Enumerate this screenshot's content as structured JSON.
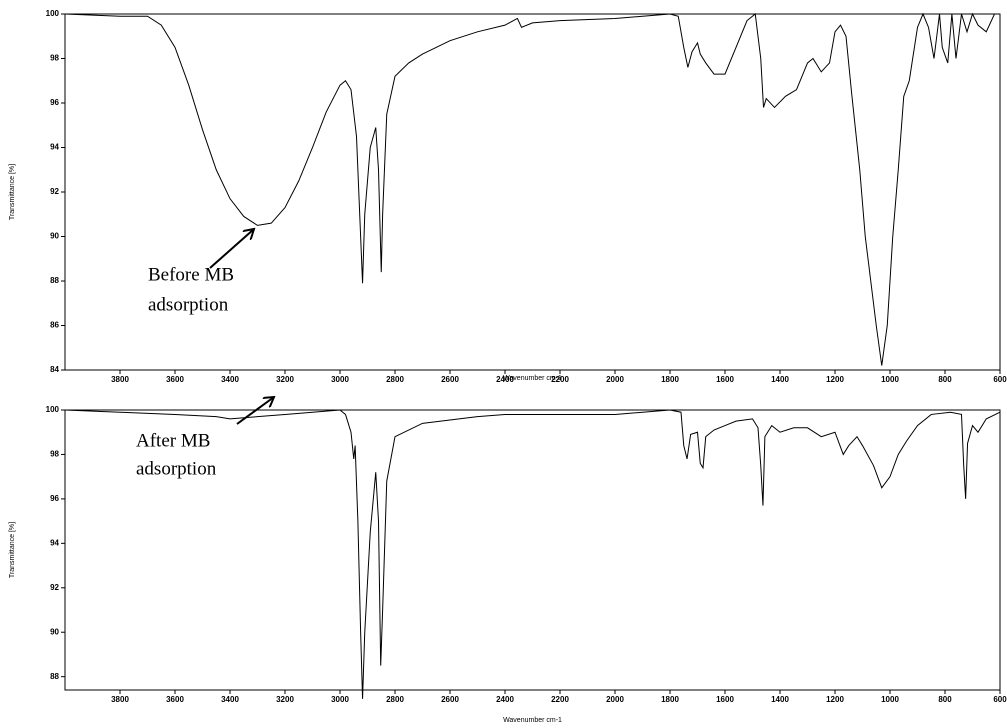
{
  "chart_data": [
    {
      "type": "line",
      "x_label": "Wavenumber cm-1",
      "y_label": "Transmittance [%]",
      "annotation": [
        "Before  MB",
        "adsorption"
      ],
      "xlim": [
        4000,
        600
      ],
      "ylim": [
        84,
        100
      ],
      "xticks": [
        3800,
        3600,
        3400,
        3200,
        3000,
        2800,
        2600,
        2400,
        2200,
        2000,
        1800,
        1600,
        1400,
        1200,
        1000,
        800,
        600
      ],
      "yticks": [
        84,
        86,
        88,
        90,
        92,
        94,
        96,
        98,
        100
      ],
      "color": "#000000",
      "x": [
        4000,
        3800,
        3700,
        3650,
        3600,
        3550,
        3500,
        3450,
        3400,
        3350,
        3300,
        3250,
        3200,
        3150,
        3100,
        3050,
        3000,
        2980,
        2960,
        2940,
        2925,
        2918,
        2910,
        2890,
        2870,
        2860,
        2850,
        2845,
        2830,
        2800,
        2750,
        2700,
        2600,
        2500,
        2400,
        2355,
        2340,
        2300,
        2200,
        2000,
        1800,
        1770,
        1750,
        1735,
        1720,
        1700,
        1690,
        1670,
        1640,
        1600,
        1560,
        1520,
        1490,
        1470,
        1460,
        1450,
        1420,
        1380,
        1340,
        1300,
        1280,
        1250,
        1220,
        1200,
        1180,
        1160,
        1140,
        1110,
        1090,
        1070,
        1050,
        1030,
        1010,
        990,
        970,
        950,
        930,
        900,
        880,
        860,
        840,
        820,
        810,
        790,
        775,
        760,
        740,
        720,
        700,
        680,
        650,
        620,
        600
      ],
      "values": [
        100,
        99.9,
        99.9,
        99.5,
        98.5,
        96.8,
        94.8,
        93,
        91.7,
        90.9,
        90.5,
        90.6,
        91.3,
        92.5,
        94,
        95.6,
        96.8,
        97,
        96.6,
        94.5,
        90,
        87.9,
        91,
        94,
        94.9,
        93,
        88.4,
        91,
        95.5,
        97.2,
        97.8,
        98.2,
        98.8,
        99.2,
        99.5,
        99.8,
        99.4,
        99.6,
        99.7,
        99.8,
        100,
        99.9,
        98.5,
        97.6,
        98.3,
        98.7,
        98.2,
        97.8,
        97.3,
        97.3,
        98.5,
        99.7,
        100,
        98,
        95.8,
        96.2,
        95.8,
        96.3,
        96.6,
        97.8,
        98,
        97.4,
        97.8,
        99.2,
        99.5,
        99,
        96.5,
        93,
        90,
        88,
        86,
        84.2,
        86,
        90,
        93,
        96.3,
        97,
        99.4,
        100,
        99.4,
        98,
        100,
        98.5,
        97.8,
        100,
        98,
        100,
        99.2,
        100,
        99.5,
        99.2,
        100,
        100
      ]
    },
    {
      "type": "line",
      "x_label": "Wavenumber cm-1",
      "y_label": "Transmittance [%]",
      "annotation": [
        "After MB",
        "adsorption"
      ],
      "xlim": [
        4000,
        600
      ],
      "ylim": [
        87.4,
        100
      ],
      "xticks": [
        3800,
        3600,
        3400,
        3200,
        3000,
        2800,
        2600,
        2400,
        2200,
        2000,
        1800,
        1600,
        1400,
        1200,
        1000,
        800,
        600
      ],
      "yticks": [
        88,
        90,
        92,
        94,
        96,
        98,
        100
      ],
      "color": "#000000",
      "x": [
        4000,
        3800,
        3600,
        3450,
        3400,
        3300,
        3200,
        3100,
        3000,
        2980,
        2960,
        2950,
        2945,
        2935,
        2925,
        2918,
        2910,
        2890,
        2870,
        2860,
        2852,
        2845,
        2830,
        2800,
        2700,
        2500,
        2400,
        2000,
        1800,
        1760,
        1750,
        1738,
        1725,
        1700,
        1690,
        1680,
        1670,
        1640,
        1600,
        1560,
        1500,
        1480,
        1470,
        1462,
        1455,
        1430,
        1400,
        1350,
        1300,
        1250,
        1200,
        1170,
        1150,
        1120,
        1100,
        1060,
        1030,
        1000,
        970,
        940,
        900,
        850,
        780,
        740,
        732,
        725,
        718,
        700,
        680,
        650,
        600
      ],
      "values": [
        100,
        99.9,
        99.8,
        99.7,
        99.6,
        99.7,
        99.8,
        99.9,
        100,
        99.8,
        99,
        97.8,
        98.4,
        95,
        90,
        87,
        90,
        94.5,
        97.2,
        95,
        88.5,
        91,
        96.8,
        98.8,
        99.4,
        99.7,
        99.8,
        99.8,
        100,
        99.9,
        98.4,
        97.8,
        98.9,
        99,
        97.6,
        97.4,
        98.8,
        99.1,
        99.3,
        99.5,
        99.6,
        99.2,
        97.5,
        95.7,
        98.8,
        99.3,
        99,
        99.2,
        99.2,
        98.8,
        99,
        98,
        98.4,
        98.8,
        98.4,
        97.5,
        96.5,
        97,
        98,
        98.6,
        99.3,
        99.8,
        99.9,
        99.8,
        97.5,
        96,
        98.5,
        99.3,
        99,
        99.6,
        99.9
      ]
    }
  ]
}
